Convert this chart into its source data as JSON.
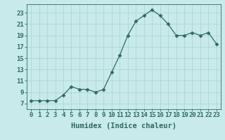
{
  "x": [
    0,
    1,
    2,
    3,
    4,
    5,
    6,
    7,
    8,
    9,
    10,
    11,
    12,
    13,
    14,
    15,
    16,
    17,
    18,
    19,
    20,
    21,
    22,
    23
  ],
  "y": [
    7.5,
    7.5,
    7.5,
    7.5,
    8.5,
    10.0,
    9.5,
    9.5,
    9.0,
    9.5,
    12.5,
    15.5,
    19.0,
    21.5,
    22.5,
    23.5,
    22.5,
    21.0,
    19.0,
    19.0,
    19.5,
    19.0,
    19.5,
    17.5
  ],
  "line_color": "#2e6b5e",
  "marker": "D",
  "marker_size": 2.5,
  "bg_color": "#c8eaea",
  "grid_color": "#b0d4d4",
  "xlabel": "Humidex (Indice chaleur)",
  "xlabel_fontsize": 7.5,
  "ylabel_ticks": [
    7,
    9,
    11,
    13,
    15,
    17,
    19,
    21,
    23
  ],
  "xtick_labels": [
    "0",
    "1",
    "2",
    "3",
    "4",
    "5",
    "6",
    "7",
    "8",
    "9",
    "10",
    "11",
    "12",
    "13",
    "14",
    "15",
    "16",
    "17",
    "18",
    "19",
    "20",
    "21",
    "22",
    "23"
  ],
  "xlim": [
    -0.5,
    23.5
  ],
  "ylim": [
    6.0,
    24.5
  ],
  "tick_fontsize": 6.5
}
